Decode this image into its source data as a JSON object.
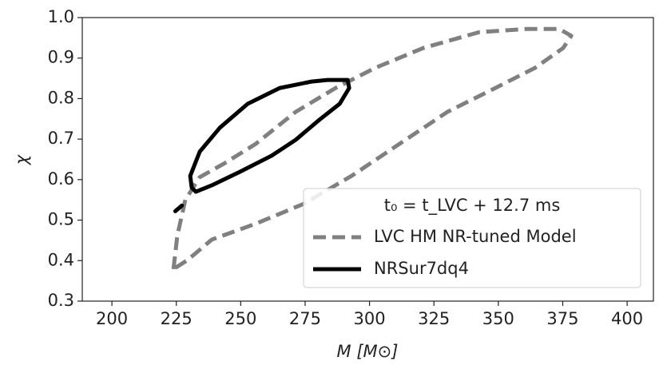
{
  "chart_data": {
    "type": "line",
    "xlabel": "M [M⊙]",
    "ylabel": "χ",
    "legend_title": "t₀ = t_LVC + 12.7 ms",
    "legend": "lower right",
    "xlim": [
      188.5,
      410.2
    ],
    "ylim": [
      0.3,
      1.0
    ],
    "xticks": [
      200,
      225,
      250,
      275,
      300,
      325,
      350,
      375,
      400
    ],
    "yticks": [
      0.3,
      0.4,
      0.5,
      0.6,
      0.7,
      0.8,
      0.9,
      {
        "value": 1,
        "label": "1.0"
      }
    ],
    "series": [
      {
        "name": "LVC HM NR-tuned Model",
        "color": "#808080",
        "dash": true,
        "x": [
          223.9,
          225.4,
          228.5,
          234.1,
          243.4,
          255.8,
          271.3,
          286.8,
          302.3,
          320.9,
          342.6,
          361.2,
          373.6,
          378.3,
          375.2,
          364.3,
          348.8,
          330.2,
          311.6,
          293.0,
          274.4,
          255.8,
          238.8,
          229.5,
          223.9
        ],
        "y": [
          0.379,
          0.462,
          0.55,
          0.606,
          0.639,
          0.688,
          0.767,
          0.826,
          0.876,
          0.925,
          0.964,
          0.972,
          0.972,
          0.955,
          0.925,
          0.876,
          0.826,
          0.767,
          0.688,
          0.609,
          0.54,
          0.491,
          0.452,
          0.402,
          0.379
        ]
      },
      {
        "name": "NRSur7dq4",
        "color": "#000000",
        "dash": false,
        "x": [
          231.0,
          230.4,
          234.1,
          241.9,
          252.7,
          265.1,
          277.5,
          283.7,
          291.5,
          292.1,
          288.4,
          280.6,
          271.3,
          262.0,
          249.6,
          238.8,
          232.6,
          231.0,
          null,
          224.6,
          227.2
        ],
        "y": [
          0.58,
          0.609,
          0.669,
          0.728,
          0.787,
          0.826,
          0.842,
          0.846,
          0.846,
          0.826,
          0.787,
          0.748,
          0.698,
          0.659,
          0.619,
          0.586,
          0.57,
          0.58,
          null,
          0.522,
          0.536
        ]
      }
    ]
  }
}
